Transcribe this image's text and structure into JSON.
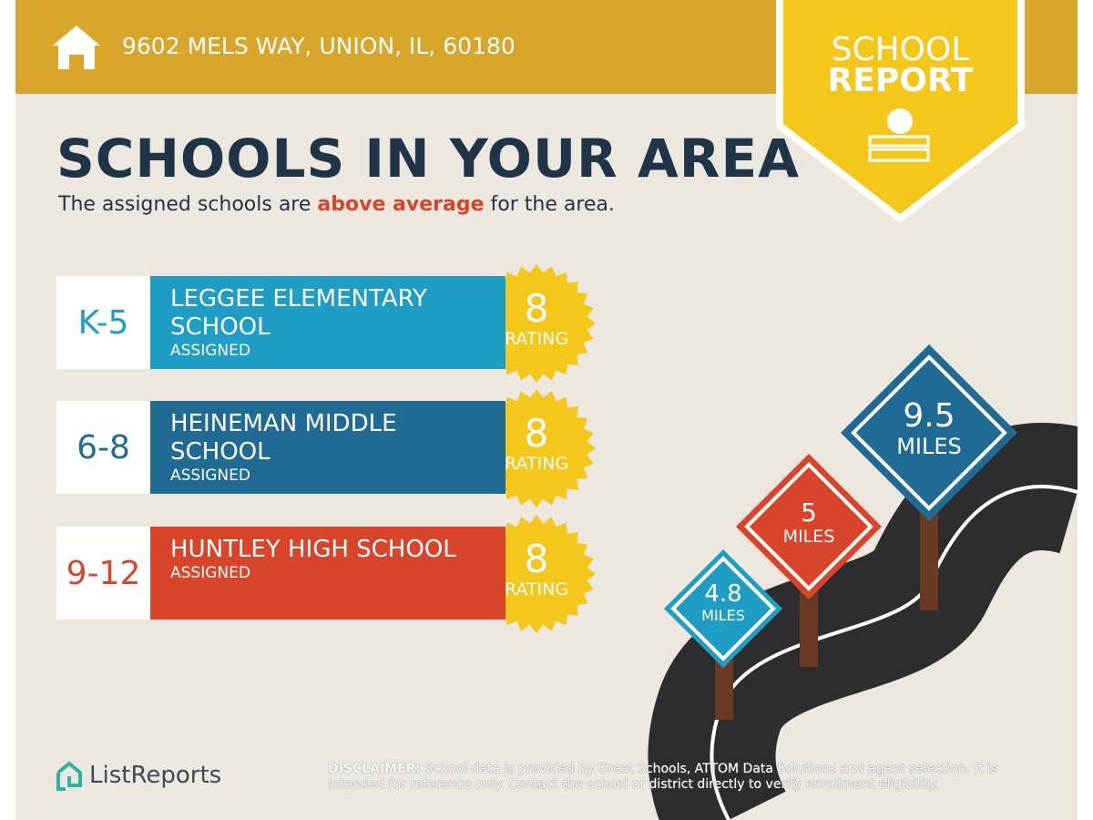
{
  "header": {
    "address": "9602 MELS WAY, UNION, IL, 60180"
  },
  "badge": {
    "line1": "SCHOOL",
    "line2": "REPORT"
  },
  "title": "SCHOOLS IN YOUR AREA",
  "subtitle": {
    "before": "The assigned schools are",
    "highlight": "above average",
    "after": "for the area."
  },
  "schools": [
    {
      "grades": "K-5",
      "name": "LEGGEE ELEMENTARY SCHOOL",
      "status": "ASSIGNED",
      "rating": "8",
      "rating_label": "RATING"
    },
    {
      "grades": "6-8",
      "name": "HEINEMAN MIDDLE SCHOOL",
      "status": "ASSIGNED",
      "rating": "8",
      "rating_label": "RATING"
    },
    {
      "grades": "9-12",
      "name": "HUNTLEY HIGH SCHOOL",
      "status": "ASSIGNED",
      "rating": "8",
      "rating_label": "RATING"
    }
  ],
  "distances": [
    {
      "value": "9.5",
      "unit": "MILES"
    },
    {
      "value": "5",
      "unit": "MILES"
    },
    {
      "value": "4.8",
      "unit": "MILES"
    }
  ],
  "footer": {
    "logo": "ListReports",
    "disclaimer_label": "DISCLAIMER:",
    "disclaimer": "School data is provided by Great Schools, ATTOM Data Solutions and agent selection. It is intended for reference only. Contact the school or district directly to verify enrollment eligibility."
  }
}
